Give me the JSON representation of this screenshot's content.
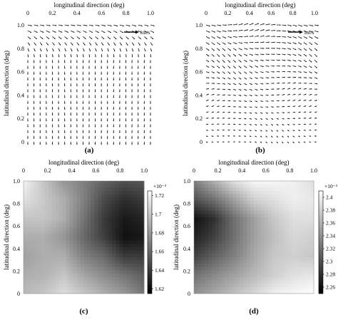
{
  "chart_data": [
    {
      "panel": "(a)",
      "type": "quiver",
      "xlabel": "longitudinal direction (deg)",
      "ylabel": "latitudinal direction (deg)",
      "xticks": [
        "0",
        "0.2",
        "0.4",
        "0.6",
        "0.8",
        "1.0"
      ],
      "yticks": [
        "0",
        "0.2",
        "0.4",
        "0.6",
        "0.8",
        "1.0"
      ],
      "xlim": [
        0,
        1
      ],
      "ylim": [
        0,
        1
      ],
      "grid": false,
      "reference_vector": {
        "label": "1m/s",
        "magnitude": 1
      },
      "grid_points": [
        21,
        21
      ],
      "flow_description": "near-uniform southward flow, turning toward the east near the northern edge"
    },
    {
      "panel": "(b)",
      "type": "quiver",
      "xlabel": "longitudinal direction (deg)",
      "ylabel": "latitudinal direction (deg)",
      "xticks": [
        "0",
        "0.2",
        "0.4",
        "0.6",
        "0.8",
        "1.0"
      ],
      "yticks": [
        "0",
        "0.2",
        "0.4",
        "0.6",
        "0.8",
        "1.0"
      ],
      "xlim": [
        0,
        1
      ],
      "ylim": [
        0,
        1
      ],
      "grid": false,
      "reference_vector": {
        "label": "1m/s",
        "magnitude": 1
      },
      "grid_points": [
        21,
        21
      ],
      "flow_description": "eastward-dominated flow with variable direction, stronger toward the north"
    },
    {
      "panel": "(c)",
      "type": "heatmap",
      "xlabel": "longitudinal direction (deg)",
      "ylabel": "latitudinal direction (deg)",
      "xticks": [
        "0",
        "0.2",
        "0.4",
        "0.6",
        "0.8",
        "1.0"
      ],
      "yticks": [
        "0",
        "0.2",
        "0.4",
        "0.6",
        "0.8",
        "1.0"
      ],
      "xlim": [
        0,
        1
      ],
      "ylim": [
        0,
        1
      ],
      "colormap": "gray",
      "colorbar": {
        "multiplier": "×10⁻³",
        "ticks": [
          "1.62",
          "1.64",
          "1.66",
          "1.68",
          "1.7",
          "1.72"
        ],
        "min": 1.615,
        "max": 1.725
      },
      "grid": [
        [
          1.72,
          1.7,
          1.68,
          1.67,
          1.658,
          1.65,
          1.652
        ],
        [
          1.712,
          1.702,
          1.69,
          1.67,
          1.647,
          1.634,
          1.64
        ],
        [
          1.7,
          1.7,
          1.69,
          1.665,
          1.64,
          1.626,
          1.63
        ],
        [
          1.69,
          1.69,
          1.68,
          1.66,
          1.642,
          1.622,
          1.625
        ],
        [
          1.684,
          1.69,
          1.69,
          1.67,
          1.66,
          1.64,
          1.64
        ],
        [
          1.69,
          1.692,
          1.7,
          1.686,
          1.675,
          1.665,
          1.655
        ],
        [
          1.695,
          1.7,
          1.71,
          1.7,
          1.69,
          1.68,
          1.665
        ]
      ]
    },
    {
      "panel": "(d)",
      "type": "heatmap",
      "xlabel": "longitudinal direction (deg)",
      "ylabel": "latitudinal direction (deg)",
      "xticks": [
        "0",
        "0.2",
        "0.4",
        "0.6",
        "0.8",
        "1.0"
      ],
      "yticks": [
        "0",
        "0.2",
        "0.4",
        "0.6",
        "0.8",
        "1.0"
      ],
      "xlim": [
        0,
        1
      ],
      "ylim": [
        0,
        1
      ],
      "colormap": "gray",
      "colorbar": {
        "multiplier": "×10⁻³",
        "ticks": [
          "2.26",
          "2.28",
          "2.3",
          "2.32",
          "2.34",
          "2.36",
          "2.38",
          "2.4"
        ],
        "min": 2.25,
        "max": 2.41
      },
      "grid": [
        [
          2.33,
          2.36,
          2.39,
          2.405,
          2.405,
          2.4,
          2.39
        ],
        [
          2.3,
          2.32,
          2.35,
          2.38,
          2.39,
          2.4,
          2.395
        ],
        [
          2.26,
          2.28,
          2.32,
          2.35,
          2.375,
          2.39,
          2.39
        ],
        [
          2.27,
          2.29,
          2.32,
          2.35,
          2.37,
          2.385,
          2.38
        ],
        [
          2.29,
          2.31,
          2.33,
          2.355,
          2.375,
          2.38,
          2.375
        ],
        [
          2.32,
          2.335,
          2.35,
          2.365,
          2.38,
          2.39,
          2.395
        ],
        [
          2.34,
          2.355,
          2.37,
          2.385,
          2.4,
          2.405,
          2.41
        ]
      ]
    }
  ]
}
